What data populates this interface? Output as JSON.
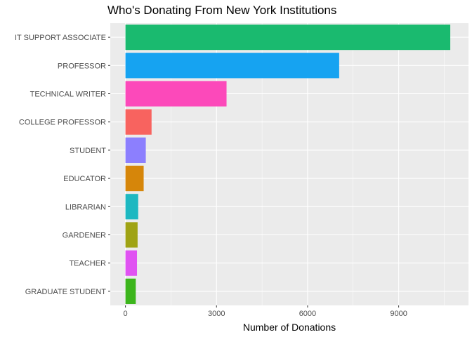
{
  "chart_data": {
    "type": "bar",
    "orientation": "horizontal",
    "title": "Who's Donating From New York Institutions",
    "xlabel": "Number of Donations",
    "ylabel": "",
    "categories": [
      "IT SUPPORT ASSOCIATE",
      "PROFESSOR",
      "TECHNICAL WRITER",
      "COLLEGE PROFESSOR",
      "STUDENT",
      "EDUCATOR",
      "LIBRARIAN",
      "GARDENER",
      "TEACHER",
      "GRADUATE STUDENT"
    ],
    "values": [
      10700,
      7040,
      3330,
      860,
      670,
      600,
      420,
      400,
      380,
      340
    ],
    "colors": [
      "#1ABA6F",
      "#16A3F1",
      "#FC49BA",
      "#F8635F",
      "#8C7FFE",
      "#D6860A",
      "#1DB8C1",
      "#9FA314",
      "#E052F2",
      "#3CB51C"
    ],
    "xlim": [
      -500,
      11300
    ],
    "x_ticks": [
      0,
      3000,
      6000,
      9000
    ],
    "x_tick_labels": [
      "0",
      "3000",
      "6000",
      "9000"
    ],
    "grid": true,
    "legend": "none",
    "panel_background": "#EBEBEB",
    "grid_color": "#FFFFFF"
  }
}
